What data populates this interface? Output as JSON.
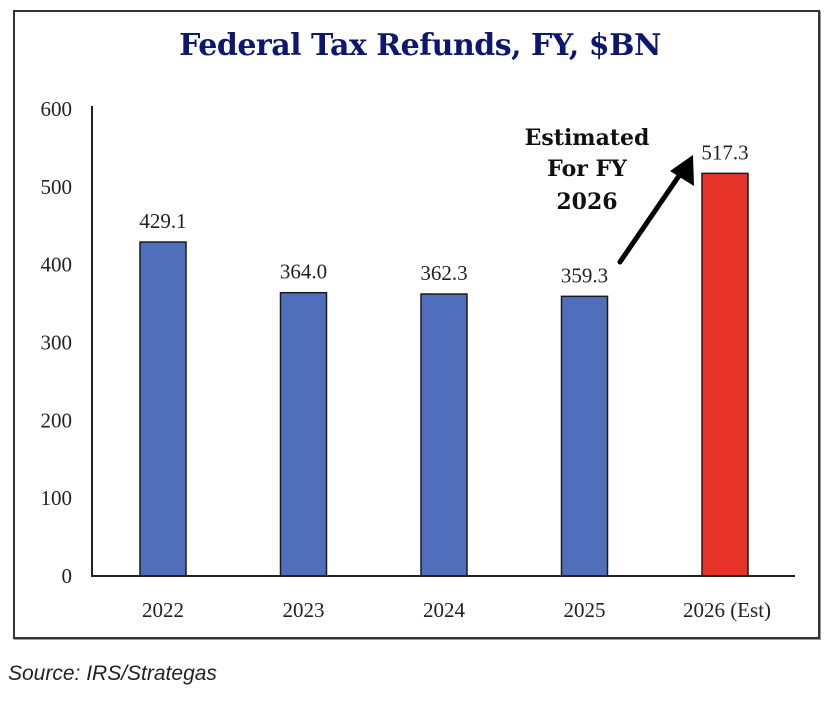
{
  "chart_data": {
    "type": "bar",
    "title": "Federal Tax Refunds, FY, $BN",
    "xlabel": "",
    "ylabel": "",
    "categories": [
      "2022",
      "2023",
      "2024",
      "2025",
      "2026 (Est)"
    ],
    "values": [
      429.1,
      364.0,
      362.3,
      359.3,
      517.3
    ],
    "data_labels": [
      "429.1",
      "364.0",
      "362.3",
      "359.3",
      "517.3"
    ],
    "bar_colors": [
      "#4f6fbd",
      "#4f6fbd",
      "#4f6fbd",
      "#4f6fbd",
      "#e8332a"
    ],
    "ylim": [
      0,
      600
    ],
    "yticks": [
      0,
      100,
      200,
      300,
      400,
      500,
      600
    ],
    "grid": false,
    "legend": "none",
    "annotation": {
      "lines": [
        "Estimated",
        "For FY",
        "2026"
      ],
      "arrow_from_category": "2025",
      "arrow_to_category": "2026 (Est)"
    }
  },
  "source": "Source: IRS/Strategas"
}
